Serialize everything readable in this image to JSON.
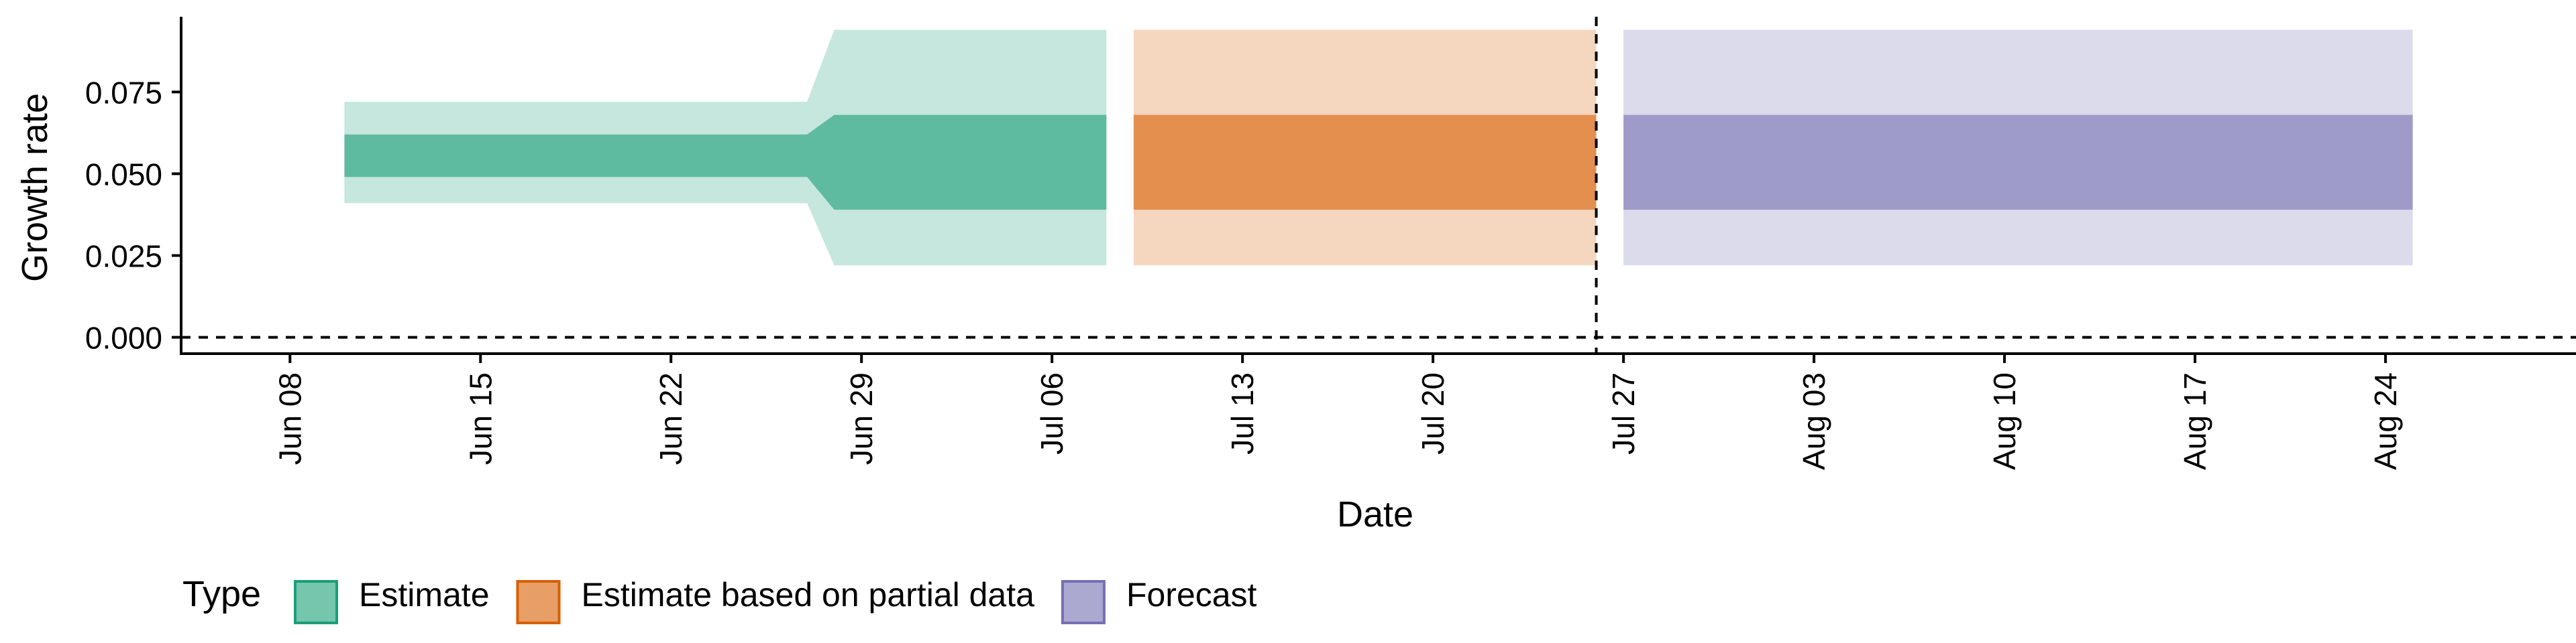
{
  "chart_data": {
    "type": "area",
    "xlabel": "Date",
    "ylabel": "Growth rate",
    "x_type": "date",
    "x_range": [
      "2020-06-04",
      "2020-08-31"
    ],
    "x_ticks": [
      {
        "date": "2020-06-08",
        "label": "Jun 08"
      },
      {
        "date": "2020-06-15",
        "label": "Jun 15"
      },
      {
        "date": "2020-06-22",
        "label": "Jun 22"
      },
      {
        "date": "2020-06-29",
        "label": "Jun 29"
      },
      {
        "date": "2020-07-06",
        "label": "Jul 06"
      },
      {
        "date": "2020-07-13",
        "label": "Jul 13"
      },
      {
        "date": "2020-07-20",
        "label": "Jul 20"
      },
      {
        "date": "2020-07-27",
        "label": "Jul 27"
      },
      {
        "date": "2020-08-03",
        "label": "Aug 03"
      },
      {
        "date": "2020-08-10",
        "label": "Aug 10"
      },
      {
        "date": "2020-08-17",
        "label": "Aug 17"
      },
      {
        "date": "2020-08-24",
        "label": "Aug 24"
      }
    ],
    "ylim": [
      -0.005,
      0.098
    ],
    "y_ticks": [
      {
        "value": 0.0,
        "label": "0.000"
      },
      {
        "value": 0.025,
        "label": "0.025"
      },
      {
        "value": 0.05,
        "label": "0.050"
      },
      {
        "value": 0.075,
        "label": "0.075"
      }
    ],
    "grid": false,
    "legend_position": "bottom-left",
    "legend_title": "Type",
    "reference_lines": [
      {
        "axis": "y",
        "value": 0.0,
        "style": "dashed"
      },
      {
        "axis": "x",
        "date": "2020-07-26",
        "style": "dashed"
      }
    ],
    "series": [
      {
        "name": "Estimate",
        "color": "#1b9e77",
        "points": [
          {
            "date": "2020-06-10",
            "lower90": 0.041,
            "lower50": 0.049,
            "upper50": 0.062,
            "upper90": 0.072
          },
          {
            "date": "2020-06-27",
            "lower90": 0.041,
            "lower50": 0.049,
            "upper50": 0.062,
            "upper90": 0.072
          },
          {
            "date": "2020-06-28",
            "lower90": 0.022,
            "lower50": 0.039,
            "upper50": 0.068,
            "upper90": 0.094
          },
          {
            "date": "2020-07-08",
            "lower90": 0.022,
            "lower50": 0.039,
            "upper50": 0.068,
            "upper90": 0.094
          }
        ]
      },
      {
        "name": "Estimate based on partial data",
        "color": "#d95f02",
        "points": [
          {
            "date": "2020-07-09",
            "lower90": 0.022,
            "lower50": 0.039,
            "upper50": 0.068,
            "upper90": 0.094
          },
          {
            "date": "2020-07-26",
            "lower90": 0.022,
            "lower50": 0.039,
            "upper50": 0.068,
            "upper90": 0.094
          }
        ]
      },
      {
        "name": "Forecast",
        "color": "#7570b3",
        "points": [
          {
            "date": "2020-07-27",
            "lower90": 0.022,
            "lower50": 0.039,
            "upper50": 0.068,
            "upper90": 0.094
          },
          {
            "date": "2020-08-25",
            "lower90": 0.022,
            "lower50": 0.039,
            "upper50": 0.068,
            "upper90": 0.094
          }
        ]
      }
    ]
  }
}
